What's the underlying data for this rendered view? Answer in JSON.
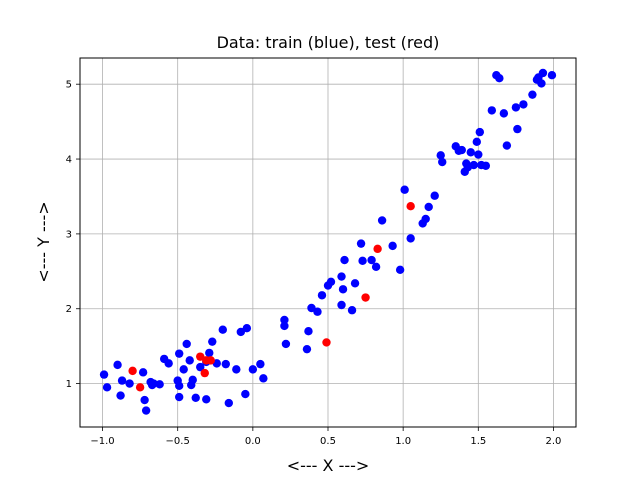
{
  "chart_data": {
    "type": "scatter",
    "title": "Data: train (blue), test (red)",
    "xlabel": "<--- X --->",
    "ylabel": "<--- Y --->",
    "xlim": [
      -1.15,
      2.15
    ],
    "ylim": [
      0.42,
      5.35
    ],
    "xticks": [
      -1.0,
      -0.5,
      0.0,
      0.5,
      1.0,
      1.5,
      2.0
    ],
    "xtick_labels": [
      "−1.0",
      "−0.5",
      "0.0",
      "0.5",
      "1.0",
      "1.5",
      "2.0"
    ],
    "yticks": [
      1,
      2,
      3,
      4,
      5
    ],
    "ytick_labels": [
      "1",
      "2",
      "3",
      "4",
      "5"
    ],
    "grid": true,
    "legend": false,
    "series": [
      {
        "color": "#0000ff",
        "points": [
          [
            -0.99,
            1.12
          ],
          [
            -0.97,
            0.95
          ],
          [
            -0.9,
            1.25
          ],
          [
            -0.88,
            0.84
          ],
          [
            -0.87,
            1.04
          ],
          [
            -0.82,
            1.0
          ],
          [
            -0.73,
            1.15
          ],
          [
            -0.72,
            0.78
          ],
          [
            -0.71,
            0.64
          ],
          [
            -0.68,
            1.02
          ],
          [
            -0.67,
            0.98
          ],
          [
            -0.66,
            1.0
          ],
          [
            -0.62,
            0.99
          ],
          [
            -0.59,
            1.33
          ],
          [
            -0.56,
            1.27
          ],
          [
            -0.5,
            1.04
          ],
          [
            -0.49,
            0.97
          ],
          [
            -0.49,
            0.82
          ],
          [
            -0.49,
            1.4
          ],
          [
            -0.46,
            1.19
          ],
          [
            -0.44,
            1.53
          ],
          [
            -0.42,
            1.31
          ],
          [
            -0.41,
            0.98
          ],
          [
            -0.4,
            1.05
          ],
          [
            -0.38,
            0.81
          ],
          [
            -0.35,
            1.22
          ],
          [
            -0.31,
            0.79
          ],
          [
            -0.31,
            1.29
          ],
          [
            -0.29,
            1.41
          ],
          [
            -0.27,
            1.56
          ],
          [
            -0.24,
            1.27
          ],
          [
            -0.2,
            1.72
          ],
          [
            -0.18,
            1.26
          ],
          [
            -0.16,
            0.74
          ],
          [
            -0.11,
            1.19
          ],
          [
            -0.08,
            1.69
          ],
          [
            -0.05,
            0.86
          ],
          [
            -0.04,
            1.74
          ],
          [
            0.0,
            1.19
          ],
          [
            0.05,
            1.26
          ],
          [
            0.07,
            1.07
          ],
          [
            0.21,
            1.77
          ],
          [
            0.21,
            1.85
          ],
          [
            0.22,
            1.53
          ],
          [
            0.36,
            1.46
          ],
          [
            0.37,
            1.7
          ],
          [
            0.39,
            2.01
          ],
          [
            0.43,
            1.96
          ],
          [
            0.46,
            2.18
          ],
          [
            0.5,
            2.31
          ],
          [
            0.52,
            2.36
          ],
          [
            0.59,
            2.43
          ],
          [
            0.59,
            2.05
          ],
          [
            0.6,
            2.26
          ],
          [
            0.61,
            2.65
          ],
          [
            0.66,
            1.98
          ],
          [
            0.68,
            2.34
          ],
          [
            0.72,
            2.87
          ],
          [
            0.73,
            2.64
          ],
          [
            0.79,
            2.65
          ],
          [
            0.82,
            2.56
          ],
          [
            0.86,
            3.18
          ],
          [
            0.93,
            2.84
          ],
          [
            0.98,
            2.52
          ],
          [
            1.01,
            3.59
          ],
          [
            1.05,
            2.94
          ],
          [
            1.13,
            3.14
          ],
          [
            1.15,
            3.2
          ],
          [
            1.17,
            3.36
          ],
          [
            1.21,
            3.51
          ],
          [
            1.25,
            4.05
          ],
          [
            1.26,
            3.96
          ],
          [
            1.35,
            4.17
          ],
          [
            1.37,
            4.11
          ],
          [
            1.39,
            4.12
          ],
          [
            1.41,
            3.83
          ],
          [
            1.42,
            3.94
          ],
          [
            1.43,
            3.89
          ],
          [
            1.45,
            4.09
          ],
          [
            1.47,
            3.92
          ],
          [
            1.49,
            4.23
          ],
          [
            1.5,
            4.06
          ],
          [
            1.51,
            4.36
          ],
          [
            1.52,
            3.92
          ],
          [
            1.55,
            3.91
          ],
          [
            1.59,
            4.65
          ],
          [
            1.62,
            5.12
          ],
          [
            1.64,
            5.08
          ],
          [
            1.67,
            4.61
          ],
          [
            1.69,
            4.18
          ],
          [
            1.75,
            4.69
          ],
          [
            1.76,
            4.4
          ],
          [
            1.8,
            4.73
          ],
          [
            1.86,
            4.86
          ],
          [
            1.89,
            5.06
          ],
          [
            1.9,
            5.09
          ],
          [
            1.92,
            5.01
          ],
          [
            1.93,
            5.15
          ],
          [
            1.99,
            5.12
          ]
        ]
      },
      {
        "color": "#ff0000",
        "points": [
          [
            -0.8,
            1.17
          ],
          [
            -0.75,
            0.95
          ],
          [
            -0.35,
            1.36
          ],
          [
            -0.32,
            1.14
          ],
          [
            -0.31,
            1.31
          ],
          [
            -0.28,
            1.31
          ],
          [
            0.49,
            1.55
          ],
          [
            0.75,
            2.15
          ],
          [
            0.83,
            2.8
          ],
          [
            1.05,
            3.37
          ]
        ]
      }
    ]
  }
}
